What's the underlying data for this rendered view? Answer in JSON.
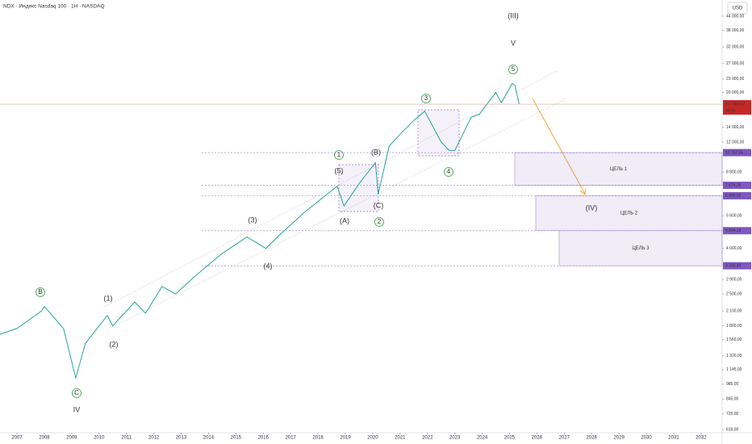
{
  "chart_data": {
    "type": "line",
    "title": "NDX · Индекс Nasdaq 100 · 1Н · NASDAQ",
    "currency": "USD",
    "log_scale": true,
    "color": "#26a69a",
    "x": [
      2006.38,
      2007.0,
      2007.9,
      2008.0,
      2008.7,
      2009.15,
      2009.5,
      2010.3,
      2010.5,
      2011.3,
      2011.7,
      2012.3,
      2012.8,
      2013.5,
      2014.5,
      2015.4,
      2016.1,
      2016.6,
      2017.5,
      2018.7,
      2018.95,
      2019.5,
      2020.1,
      2020.2,
      2020.6,
      2021.0,
      2021.5,
      2021.9,
      2022.5,
      2022.8,
      2023.0,
      2023.6,
      2023.9,
      2024.5,
      2024.7,
      2025.1,
      2025.2,
      2025.35
    ],
    "values": [
      1650,
      1750,
      2100,
      2200,
      1750,
      1050,
      1500,
      2000,
      1800,
      2300,
      2050,
      2700,
      2500,
      3000,
      3800,
      4500,
      4000,
      4600,
      5800,
      7600,
      6200,
      7800,
      9700,
      7000,
      11500,
      13000,
      15000,
      16500,
      12000,
      11000,
      11000,
      15500,
      16000,
      20000,
      18000,
      22000,
      21500,
      17740.57
    ],
    "xlim": [
      2006.38,
      2032.77
    ],
    "xticks": [
      2007,
      2008,
      2009,
      2010,
      2011,
      2012,
      2013,
      2014,
      2015,
      2016,
      2017,
      2018,
      2019,
      2020,
      2021,
      2022,
      2023,
      2024,
      2025,
      2026,
      2027,
      2028,
      2029,
      2030,
      2031,
      2032
    ],
    "ylim": [
      587,
      52000
    ],
    "yticks": [
      {
        "value": 44000,
        "label": "44 000,00"
      },
      {
        "value": 38000,
        "label": "38 000,00"
      },
      {
        "value": 32000,
        "label": "32 000,00"
      },
      {
        "value": 27000,
        "label": "27 000,00"
      },
      {
        "value": 23000,
        "label": "23 000,00"
      },
      {
        "value": 20000,
        "label": "20 000,00"
      },
      {
        "value": 14000,
        "label": "14 000,00"
      },
      {
        "value": 12000,
        "label": "12 000,00"
      },
      {
        "value": 8800,
        "label": "8 800,00"
      },
      {
        "value": 5600,
        "label": "5 600,00"
      },
      {
        "value": 4000,
        "label": "4 000,00"
      },
      {
        "value": 2900,
        "label": "2 900,00"
      },
      {
        "value": 2500,
        "label": "2 500,00"
      },
      {
        "value": 2100,
        "label": "2 100,00"
      },
      {
        "value": 1800,
        "label": "1 800,00"
      },
      {
        "value": 1560,
        "label": "1 560,00"
      },
      {
        "value": 1320,
        "label": "1 320,00"
      },
      {
        "value": 1145,
        "label": "1 145,00"
      },
      {
        "value": 985,
        "label": "985,00"
      },
      {
        "value": 845,
        "label": "845,00"
      },
      {
        "value": 725,
        "label": "725,00"
      },
      {
        "value": 616,
        "label": "616,00"
      }
    ],
    "last_price": {
      "value": 17740.57,
      "label": "17 740,57",
      "countdown": "4d 5h"
    },
    "levels": [
      {
        "value": 10757.55,
        "label": "10 757,55"
      },
      {
        "value": 7674.26,
        "label": "7 674,26"
      },
      {
        "value": 6890.5,
        "label": "6 890,50"
      },
      {
        "value": 4804.19,
        "label": "4 804,19"
      },
      {
        "value": 3345.49,
        "label": "3 345,49"
      }
    ],
    "zones": [
      {
        "label": "ЦЕЛЬ 1",
        "top": 10757.55,
        "bottom": 7674.26
      },
      {
        "label": "ЦЕЛЬ 2",
        "top": 6890.5,
        "bottom": 4804.19
      },
      {
        "label": "ЦЕЛЬ 3",
        "top": 4804.19,
        "bottom": 3345.49
      }
    ],
    "annotations": [
      {
        "text": "(III)",
        "color": "#1e53e5"
      },
      {
        "text": "V",
        "color": "#e03c3c"
      },
      {
        "text": "5",
        "color": "#2ea043"
      },
      {
        "text": "3",
        "color": "#2ea043"
      },
      {
        "text": "4",
        "color": "#2ea043"
      },
      {
        "text": "1",
        "color": "#2ea043"
      },
      {
        "text": "(5)",
        "color": "#1e53e5"
      },
      {
        "text": "(B)",
        "color": "#1e53e5"
      },
      {
        "text": "(C)",
        "color": "#1e53e5"
      },
      {
        "text": "2",
        "color": "#2ea043"
      },
      {
        "text": "(A)",
        "color": "#1e53e5"
      },
      {
        "text": "(3)",
        "color": "#1e53e5"
      },
      {
        "text": "(4)",
        "color": "#1e53e5"
      },
      {
        "text": "B",
        "color": "#2ea043"
      },
      {
        "text": "(1)",
        "color": "#1e53e5"
      },
      {
        "text": "(2)",
        "color": "#1e53e5"
      },
      {
        "text": "C",
        "color": "#2ea043"
      },
      {
        "text": "IV",
        "color": "#e03c3c"
      },
      {
        "text": "(IV)",
        "color": "#1e53e5"
      }
    ]
  }
}
